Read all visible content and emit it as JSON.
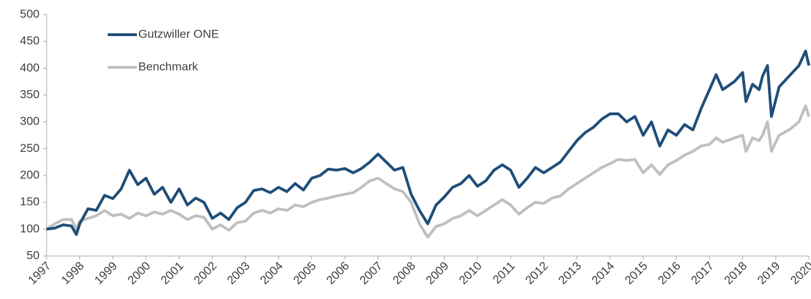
{
  "chart_data": {
    "type": "line",
    "x": [
      1997,
      1997.25,
      1997.5,
      1997.75,
      1997.9,
      1998,
      1998.25,
      1998.5,
      1998.75,
      1999,
      1999.25,
      1999.5,
      1999.75,
      2000,
      2000.25,
      2000.5,
      2000.75,
      2001,
      2001.25,
      2001.5,
      2001.75,
      2002,
      2002.25,
      2002.5,
      2002.75,
      2003,
      2003.25,
      2003.5,
      2003.75,
      2004,
      2004.25,
      2004.5,
      2004.75,
      2005,
      2005.25,
      2005.5,
      2005.75,
      2006,
      2006.25,
      2006.5,
      2006.75,
      2007,
      2007.25,
      2007.5,
      2007.75,
      2008,
      2008.25,
      2008.5,
      2008.75,
      2009,
      2009.25,
      2009.5,
      2009.75,
      2010,
      2010.25,
      2010.5,
      2010.75,
      2011,
      2011.25,
      2011.5,
      2011.75,
      2012,
      2012.25,
      2012.5,
      2012.75,
      2013,
      2013.25,
      2013.5,
      2013.75,
      2014,
      2014.25,
      2014.5,
      2014.75,
      2015,
      2015.25,
      2015.5,
      2015.75,
      2016,
      2016.25,
      2016.5,
      2016.75,
      2017,
      2017.2,
      2017.4,
      2017.75,
      2018,
      2018.1,
      2018.3,
      2018.5,
      2018.6,
      2018.75,
      2018.87,
      2019.1,
      2019.4,
      2019.7,
      2019.9,
      2020
    ],
    "series": [
      {
        "name": "Gutzwiller ONE",
        "color": "#1f4e79",
        "values": [
          100,
          102,
          108,
          106,
          90,
          110,
          138,
          135,
          163,
          157,
          175,
          210,
          183,
          195,
          165,
          178,
          150,
          175,
          145,
          158,
          150,
          120,
          130,
          118,
          140,
          150,
          172,
          175,
          168,
          178,
          170,
          185,
          173,
          195,
          200,
          212,
          210,
          213,
          205,
          213,
          225,
          240,
          225,
          210,
          215,
          165,
          135,
          110,
          145,
          160,
          178,
          185,
          200,
          180,
          190,
          210,
          220,
          210,
          178,
          195,
          215,
          205,
          215,
          225,
          245,
          265,
          280,
          290,
          305,
          315,
          315,
          300,
          310,
          275,
          300,
          255,
          285,
          275,
          295,
          285,
          325,
          360,
          388,
          360,
          375,
          392,
          338,
          370,
          360,
          385,
          405,
          310,
          365,
          385,
          405,
          432,
          405
        ]
      },
      {
        "name": "Benchmark",
        "color": "#bfbfbf",
        "values": [
          100,
          110,
          118,
          118,
          100,
          115,
          120,
          125,
          135,
          125,
          128,
          120,
          130,
          125,
          132,
          128,
          135,
          128,
          118,
          125,
          122,
          100,
          108,
          98,
          112,
          115,
          130,
          135,
          130,
          138,
          135,
          145,
          142,
          150,
          155,
          158,
          162,
          165,
          168,
          178,
          190,
          195,
          185,
          175,
          170,
          150,
          110,
          85,
          105,
          110,
          120,
          125,
          135,
          125,
          135,
          145,
          155,
          145,
          128,
          140,
          150,
          148,
          158,
          162,
          175,
          185,
          195,
          205,
          215,
          222,
          230,
          228,
          230,
          205,
          220,
          202,
          220,
          228,
          238,
          245,
          255,
          258,
          270,
          262,
          270,
          275,
          245,
          270,
          265,
          275,
          300,
          245,
          275,
          285,
          300,
          330,
          310
        ]
      }
    ],
    "xlim": [
      1997,
      2020
    ],
    "xticks": [
      1997,
      1998,
      1999,
      2000,
      2001,
      2002,
      2003,
      2004,
      2005,
      2006,
      2007,
      2008,
      2009,
      2010,
      2011,
      2012,
      2013,
      2014,
      2015,
      2016,
      2017,
      2018,
      2019,
      2020
    ],
    "ylim": [
      50,
      500
    ],
    "yticks": [
      50,
      100,
      150,
      200,
      250,
      300,
      350,
      400,
      450,
      500
    ]
  }
}
